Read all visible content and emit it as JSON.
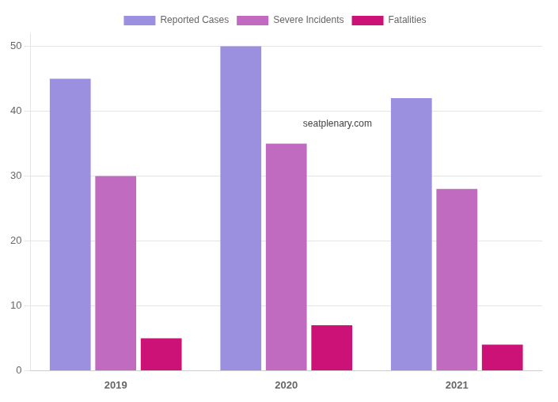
{
  "chart_data": {
    "type": "bar",
    "categories": [
      "2019",
      "2020",
      "2021"
    ],
    "series": [
      {
        "name": "Reported Cases",
        "color": "#9b8fe0",
        "values": [
          45,
          50,
          42
        ]
      },
      {
        "name": "Severe Incidents",
        "color": "#c06bbf",
        "values": [
          30,
          35,
          28
        ]
      },
      {
        "name": "Fatalities",
        "color": "#cc1177",
        "values": [
          5,
          7,
          4
        ]
      }
    ],
    "ylim": [
      0,
      52
    ],
    "yticks": [
      0,
      10,
      20,
      30,
      40,
      50
    ],
    "grid": true,
    "legend": "top",
    "annotations": [
      "seatplenary.com"
    ]
  }
}
